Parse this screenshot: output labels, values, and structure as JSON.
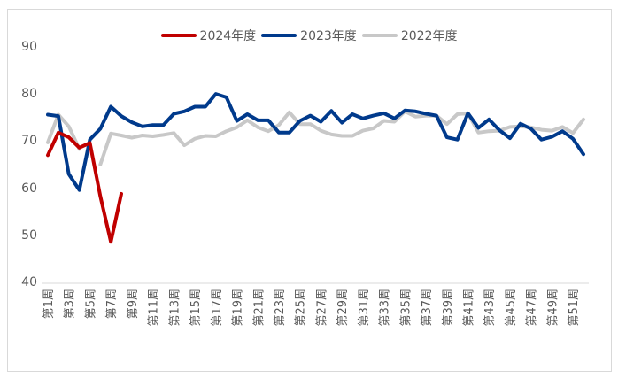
{
  "chart_data": {
    "type": "line",
    "title": "",
    "xlabel": "",
    "ylabel": "",
    "ylim": [
      40,
      90
    ],
    "yticks": [
      40,
      50,
      60,
      70,
      80,
      90
    ],
    "grid": "baseline only",
    "legend_position": "top",
    "x_tick_labels": [
      "第1周",
      "第3周",
      "第5周",
      "第7周",
      "第9周",
      "第11周",
      "第13周",
      "第15周",
      "第17周",
      "第19周",
      "第21周",
      "第23周",
      "第25周",
      "第27周",
      "第29周",
      "第31周",
      "第33周",
      "第35周",
      "第37周",
      "第39周",
      "第41周",
      "第43周",
      "第45周",
      "第47周",
      "第49周",
      "第51周"
    ],
    "x": [
      1,
      2,
      3,
      4,
      5,
      6,
      7,
      8,
      9,
      10,
      11,
      12,
      13,
      14,
      15,
      16,
      17,
      18,
      19,
      20,
      21,
      22,
      23,
      24,
      25,
      26,
      27,
      28,
      29,
      30,
      31,
      32,
      33,
      34,
      35,
      36,
      37,
      38,
      39,
      40,
      41,
      42,
      43,
      44,
      45,
      46,
      47,
      48,
      49,
      50,
      51,
      52
    ],
    "series": [
      {
        "name": "2024年度",
        "color": "#C00000",
        "values": [
          67.2,
          72.0,
          71.0,
          68.8,
          69.8,
          58.5,
          48.8,
          59.0
        ]
      },
      {
        "name": "2023年度",
        "color": "#003A8C",
        "values": [
          75.8,
          75.5,
          63.2,
          59.8,
          70.5,
          72.8,
          77.5,
          75.5,
          74.2,
          73.3,
          73.6,
          73.6,
          76.0,
          76.5,
          77.5,
          77.5,
          80.2,
          79.5,
          74.5,
          75.9,
          74.6,
          74.6,
          72.0,
          72.0,
          74.5,
          75.6,
          74.3,
          76.6,
          74.1,
          75.9,
          75.0,
          75.6,
          76.1,
          75.0,
          76.7,
          76.5,
          76.0,
          75.6,
          71.0,
          70.5,
          76.1,
          73.0,
          74.8,
          72.5,
          70.8,
          73.9,
          72.8,
          70.5,
          71.1,
          72.3,
          70.7,
          67.4
        ]
      },
      {
        "name": "2022年度",
        "color": "#C8C8C8",
        "values": [
          69.9,
          75.8,
          73.3,
          68.5,
          null,
          65.2,
          71.8,
          71.4,
          70.9,
          71.4,
          71.2,
          71.5,
          71.9,
          69.3,
          70.7,
          71.3,
          71.2,
          72.3,
          73.1,
          74.6,
          73.1,
          72.3,
          73.6,
          76.3,
          73.8,
          73.8,
          72.4,
          71.6,
          71.3,
          71.3,
          72.4,
          72.9,
          74.5,
          74.3,
          76.5,
          75.4,
          75.6,
          75.6,
          73.8,
          75.9,
          76.1,
          72.0,
          72.3,
          72.4,
          73.2,
          73.3,
          73.1,
          72.6,
          72.4,
          73.2,
          71.9,
          74.8
        ]
      }
    ]
  }
}
